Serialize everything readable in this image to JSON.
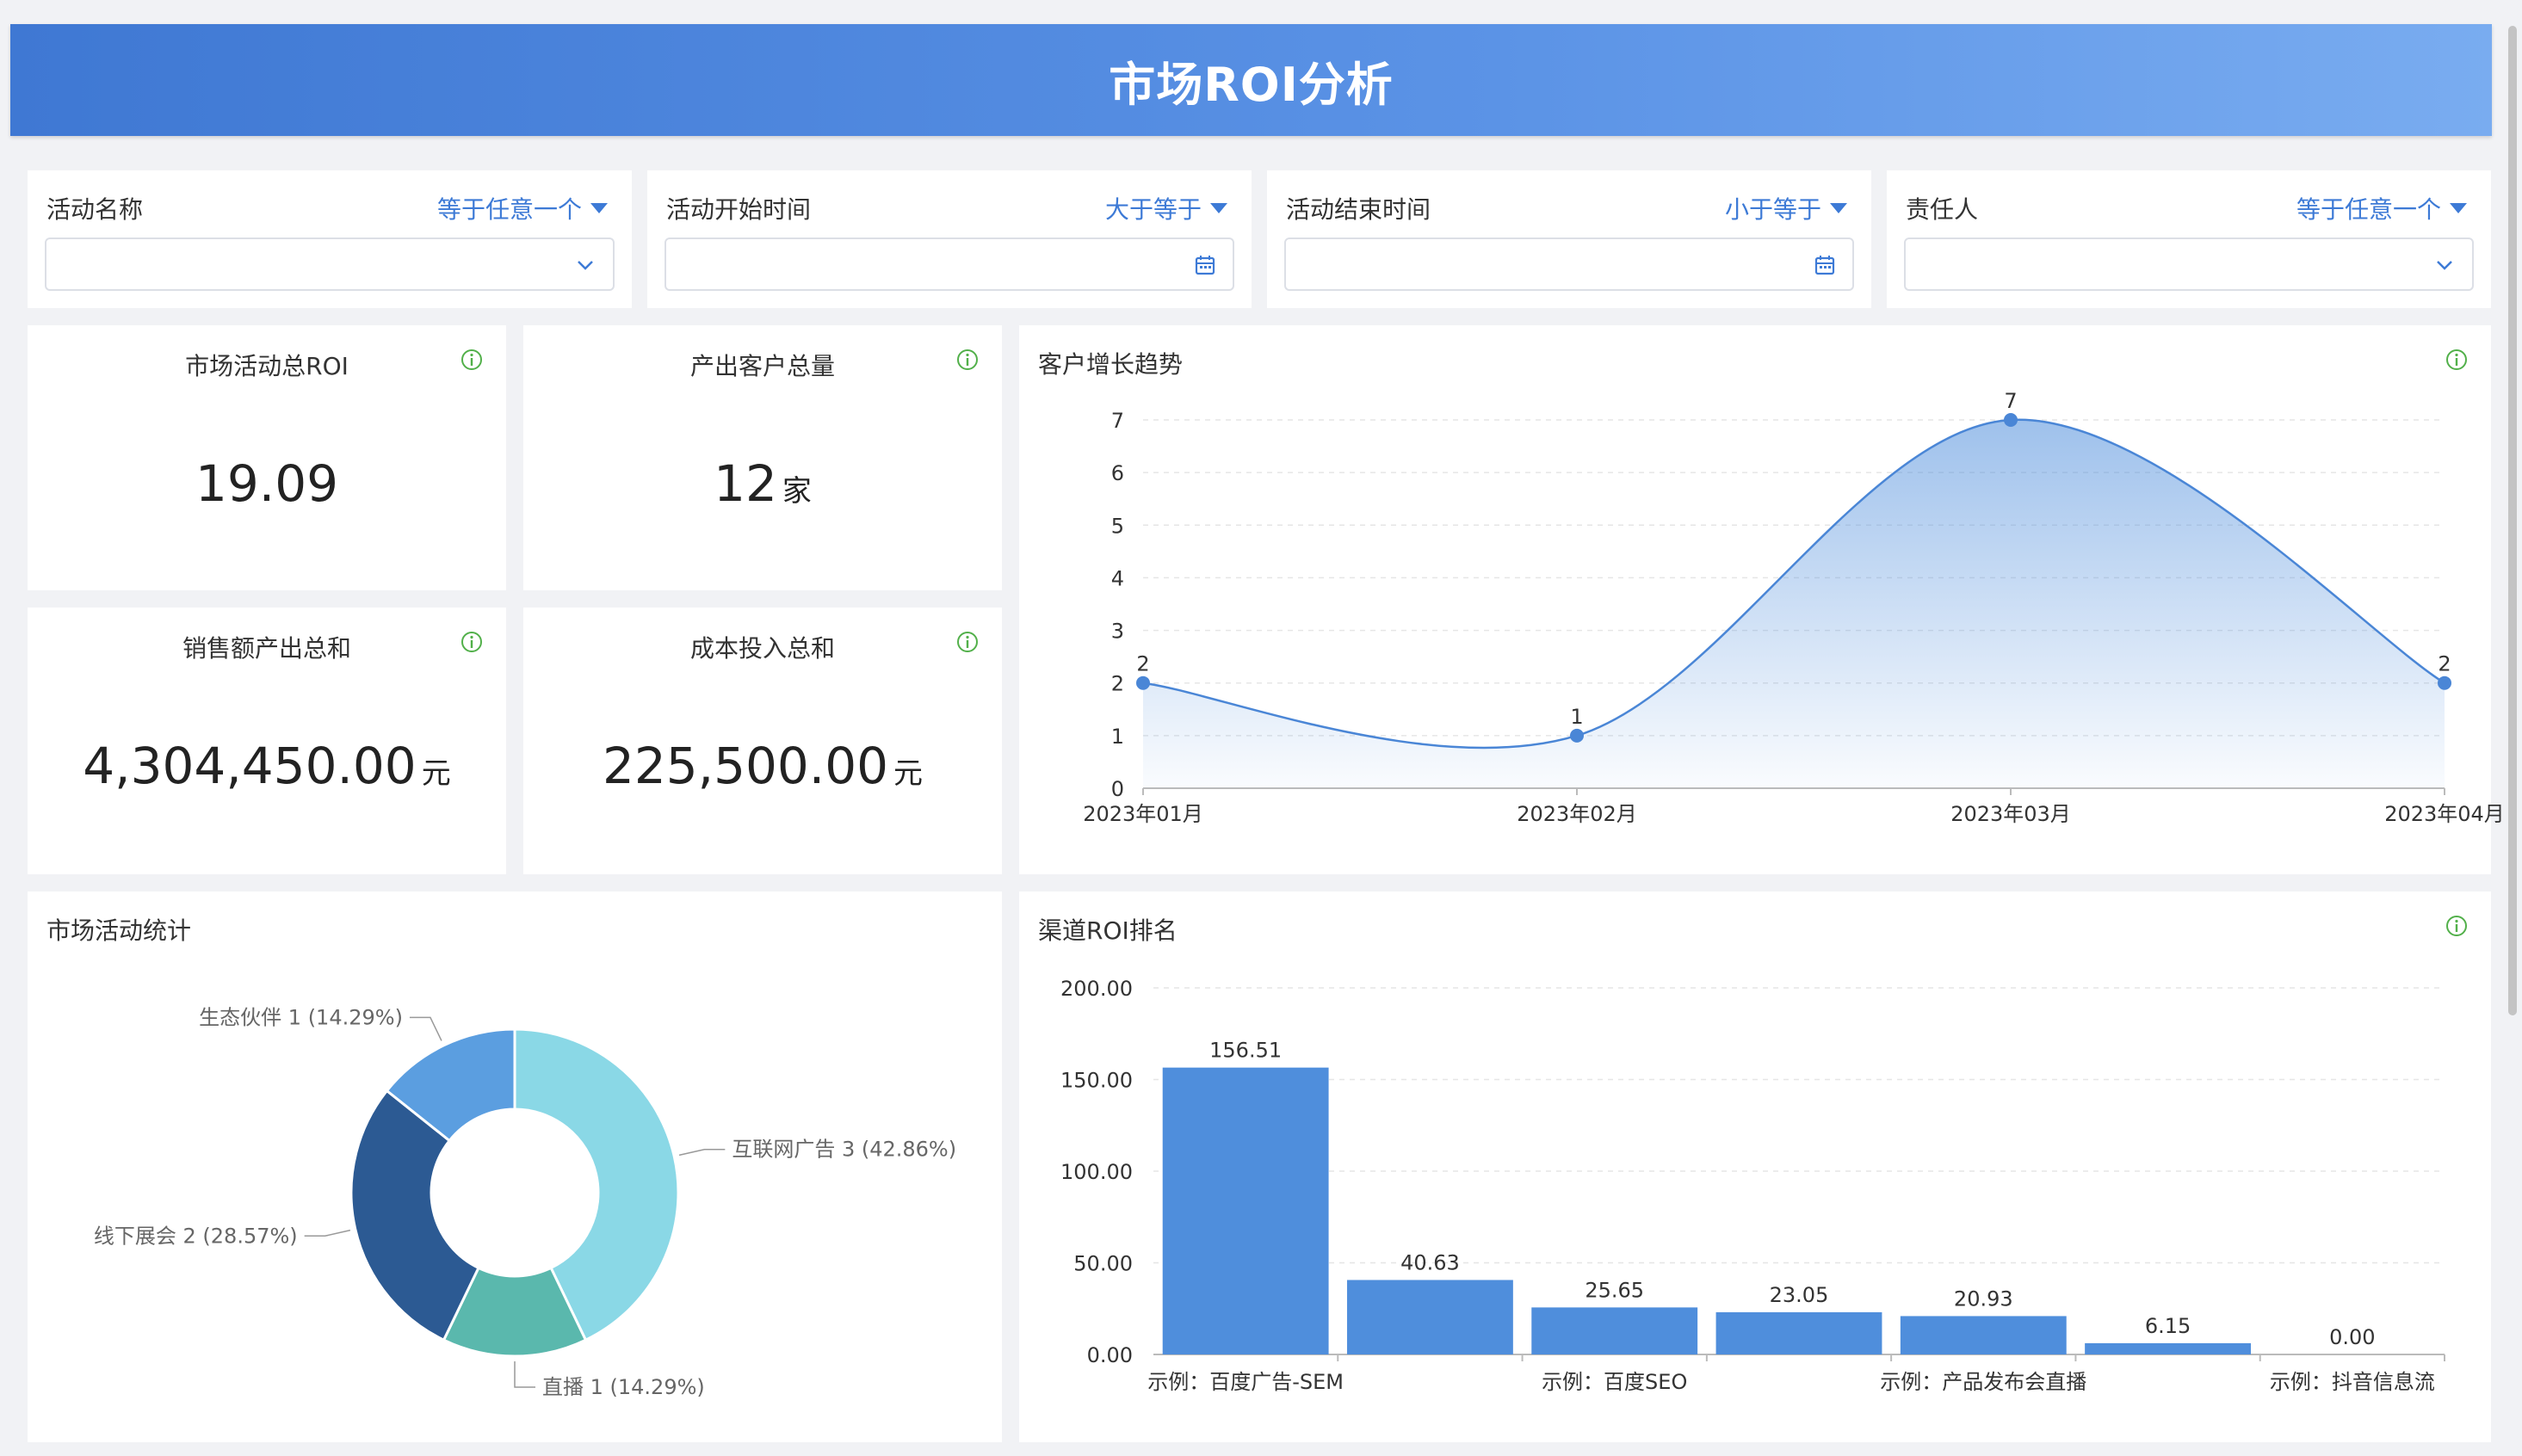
{
  "header": {
    "title": "市场ROI分析"
  },
  "filters": [
    {
      "label": "活动名称",
      "operator": "等于任意一个",
      "control": "dropdown"
    },
    {
      "label": "活动开始时间",
      "operator": "大于等于",
      "control": "calendar"
    },
    {
      "label": "活动结束时间",
      "operator": "小于等于",
      "control": "calendar"
    },
    {
      "label": "责任人",
      "operator": "等于任意一个",
      "control": "dropdown"
    }
  ],
  "kpis": {
    "total_roi": {
      "title": "市场活动总ROI",
      "value": "19.09",
      "unit": ""
    },
    "customers": {
      "title": "产出客户总量",
      "value": "12",
      "unit": "家"
    },
    "sales": {
      "title": "销售额产出总和",
      "value": "4,304,450.00",
      "unit": "元"
    },
    "cost": {
      "title": "成本投入总和",
      "value": "225,500.00",
      "unit": "元"
    }
  },
  "colors": {
    "accent": "#3d7ad6",
    "info_green": "#52b04a",
    "bar": "#4f8edc"
  },
  "chart_data": [
    {
      "type": "area",
      "title": "客户增长趋势",
      "categories": [
        "2023年01月",
        "2023年02月",
        "2023年03月",
        "2023年04月"
      ],
      "values": [
        2,
        1,
        7,
        2
      ],
      "yticks": [
        0,
        1,
        2,
        3,
        4,
        5,
        6,
        7
      ],
      "ylim": [
        0,
        7
      ],
      "grid": true,
      "smooth": true
    },
    {
      "type": "pie",
      "title": "市场活动统计",
      "donut": true,
      "slices": [
        {
          "label": "互联网广告",
          "value": 3,
          "percent": "42.86%",
          "color": "#8ad8e6"
        },
        {
          "label": "直播",
          "value": 1,
          "percent": "14.29%",
          "color": "#5ab8ad"
        },
        {
          "label": "线下展会",
          "value": 2,
          "percent": "28.57%",
          "color": "#2c5a93"
        },
        {
          "label": "生态伙伴",
          "value": 1,
          "percent": "14.29%",
          "color": "#5b9ee0"
        }
      ]
    },
    {
      "type": "bar",
      "title": "渠道ROI排名",
      "values": [
        156.51,
        40.63,
        25.65,
        23.05,
        20.93,
        6.15,
        0.0
      ],
      "value_labels": [
        "156.51",
        "40.63",
        "25.65",
        "23.05",
        "20.93",
        "6.15",
        "0.00"
      ],
      "xtick_labels": [
        "示例：百度广告-SEM",
        "",
        "示例：百度SEO",
        "",
        "示例：产品发布会直播",
        "",
        "示例：抖音信息流"
      ],
      "yticks": [
        "0.00",
        "50.00",
        "100.00",
        "150.00",
        "200.00"
      ],
      "ylim": [
        0,
        200
      ],
      "grid": true
    }
  ]
}
